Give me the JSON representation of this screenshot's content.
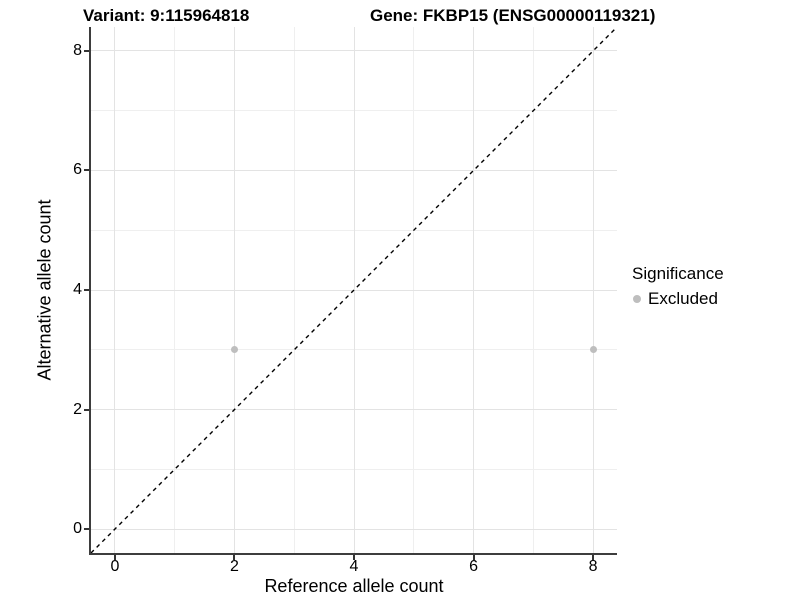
{
  "chart_data": {
    "type": "scatter",
    "title_variant": "Variant: 9:115964818",
    "title_gene": "Gene: FKBP15 (ENSG00000119321)",
    "xlabel": "Reference allele count",
    "ylabel": "Alternative allele count",
    "xlim": [
      -0.4,
      8.4
    ],
    "ylim": [
      -0.4,
      8.4
    ],
    "x_ticks": [
      0,
      2,
      4,
      6,
      8
    ],
    "y_ticks": [
      0,
      2,
      4,
      6,
      8
    ],
    "x_minor_gridlines": [
      1,
      3,
      5,
      7
    ],
    "y_minor_gridlines": [
      1,
      3,
      5,
      7
    ],
    "grid": "on",
    "diagonal_line": {
      "equation": "y = x",
      "style": "dashed",
      "color": "#000000",
      "from": [
        -0.4,
        -0.4
      ],
      "to": [
        8.4,
        8.4
      ]
    },
    "legend": {
      "title": "Significance",
      "position": "right",
      "items": [
        {
          "label": "Excluded",
          "color": "#bebebe"
        }
      ]
    },
    "series": [
      {
        "name": "Excluded",
        "color": "#bebebe",
        "points": [
          {
            "x": 2,
            "y": 3
          },
          {
            "x": 8,
            "y": 3
          }
        ]
      }
    ],
    "colors": {
      "background": "#ffffff",
      "grid_major": "#e3e3e3",
      "grid_minor": "#efefef",
      "axis_line": "#3d3d3d",
      "point": "#bebebe",
      "text": "#000000"
    }
  }
}
